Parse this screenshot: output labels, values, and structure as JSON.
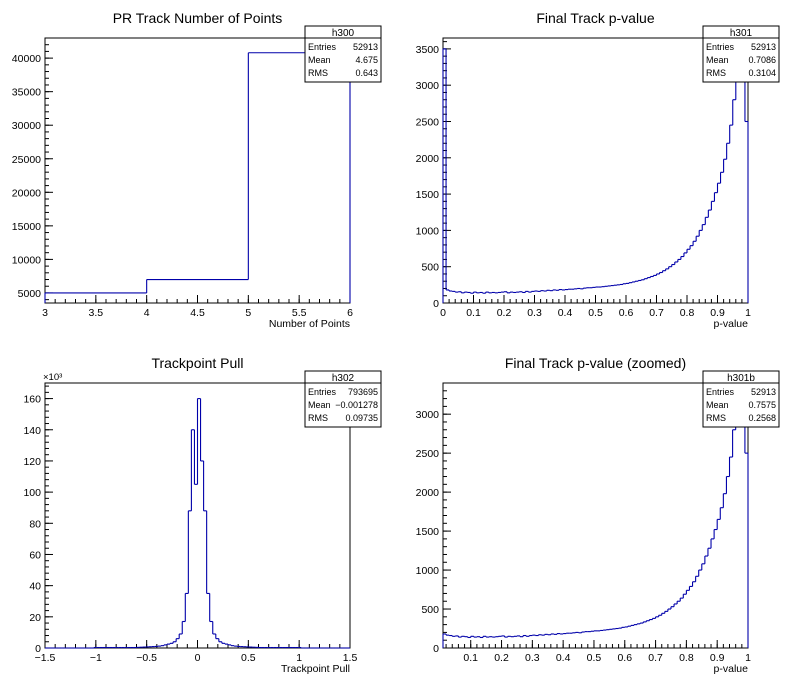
{
  "chart_data": [
    {
      "id": "h300",
      "type": "histogram",
      "title": "PR Track Number of Points",
      "xlabel": "Number of Points",
      "ylabel": "",
      "xlim": [
        3,
        6
      ],
      "ylim": [
        3500,
        43000
      ],
      "xticks": [
        3,
        3.5,
        4,
        4.5,
        5,
        5.5,
        6
      ],
      "xtick_labels": [
        "3",
        "3.5",
        "4",
        "4.5",
        "5",
        "5.5",
        "6"
      ],
      "yticks": [
        5000,
        10000,
        15000,
        20000,
        25000,
        30000,
        35000,
        40000
      ],
      "ytick_labels": [
        "5000",
        "10000",
        "15000",
        "20000",
        "25000",
        "30000",
        "35000",
        "40000"
      ],
      "y_multiplier": "",
      "line_color": "#0000aa",
      "stats": {
        "name": "h300",
        "entries": "52913",
        "mean": "4.675",
        "rms": "0.643"
      },
      "bins": {
        "edges": [
          3,
          4,
          5,
          6
        ],
        "values": [
          5000,
          7000,
          40800
        ]
      }
    },
    {
      "id": "h301",
      "type": "histogram",
      "title": "Final Track p-value",
      "xlabel": "p-value",
      "ylabel": "",
      "xlim": [
        0,
        1
      ],
      "ylim": [
        0,
        3650
      ],
      "xticks": [
        0,
        0.1,
        0.2,
        0.3,
        0.4,
        0.5,
        0.6,
        0.7,
        0.8,
        0.9,
        1
      ],
      "xtick_labels": [
        "0",
        "0.1",
        "0.2",
        "0.3",
        "0.4",
        "0.5",
        "0.6",
        "0.7",
        "0.8",
        "0.9",
        "1"
      ],
      "yticks": [
        0,
        500,
        1000,
        1500,
        2000,
        2500,
        3000,
        3500
      ],
      "ytick_labels": [
        "0",
        "500",
        "1000",
        "1500",
        "2000",
        "2500",
        "3000",
        "3500"
      ],
      "y_multiplier": "",
      "line_color": "#0000aa",
      "stats": {
        "name": "h301",
        "entries": "52913",
        "mean": "0.7086",
        "rms": "0.3104"
      },
      "bins": {
        "edges": [
          0,
          0.01,
          0.02,
          0.03,
          0.04,
          0.05,
          0.06,
          0.07,
          0.08,
          0.09,
          0.1,
          0.11,
          0.12,
          0.13,
          0.14,
          0.15,
          0.16,
          0.17,
          0.18,
          0.19,
          0.2,
          0.21,
          0.22,
          0.23,
          0.24,
          0.25,
          0.26,
          0.27,
          0.28,
          0.29,
          0.3,
          0.31,
          0.32,
          0.33,
          0.34,
          0.35,
          0.36,
          0.37,
          0.38,
          0.39,
          0.4,
          0.41,
          0.42,
          0.43,
          0.44,
          0.45,
          0.46,
          0.47,
          0.48,
          0.49,
          0.5,
          0.51,
          0.52,
          0.53,
          0.54,
          0.55,
          0.56,
          0.57,
          0.58,
          0.59,
          0.6,
          0.61,
          0.62,
          0.63,
          0.64,
          0.65,
          0.66,
          0.67,
          0.68,
          0.69,
          0.7,
          0.71,
          0.72,
          0.73,
          0.74,
          0.75,
          0.76,
          0.77,
          0.78,
          0.79,
          0.8,
          0.81,
          0.82,
          0.83,
          0.84,
          0.85,
          0.86,
          0.87,
          0.88,
          0.89,
          0.9,
          0.91,
          0.92,
          0.93,
          0.94,
          0.95,
          0.96,
          0.97,
          0.98,
          0.99,
          1
        ],
        "values": [
          3500,
          180,
          165,
          160,
          150,
          155,
          140,
          150,
          145,
          135,
          150,
          140,
          145,
          135,
          150,
          140,
          145,
          140,
          145,
          150,
          155,
          140,
          150,
          145,
          150,
          155,
          145,
          160,
          150,
          160,
          165,
          160,
          170,
          165,
          175,
          170,
          180,
          175,
          185,
          180,
          185,
          190,
          190,
          195,
          200,
          195,
          205,
          210,
          210,
          215,
          220,
          220,
          225,
          230,
          235,
          240,
          245,
          250,
          255,
          265,
          270,
          280,
          290,
          300,
          310,
          320,
          335,
          350,
          365,
          380,
          400,
          420,
          445,
          470,
          500,
          530,
          565,
          600,
          640,
          690,
          740,
          790,
          850,
          920,
          1000,
          1080,
          1180,
          1280,
          1400,
          1520,
          1650,
          1800,
          1980,
          2200,
          2450,
          2800,
          3300,
          3700,
          3700,
          2500
        ]
      }
    },
    {
      "id": "h302",
      "type": "histogram",
      "title": "Trackpoint Pull",
      "xlabel": "Trackpoint Pull",
      "ylabel": "",
      "xlim": [
        -1.5,
        1.5
      ],
      "ylim": [
        0,
        170
      ],
      "xticks": [
        -1.5,
        -1,
        -0.5,
        0,
        0.5,
        1,
        1.5
      ],
      "xtick_labels": [
        "−1.5",
        "−1",
        "−0.5",
        "0",
        "0.5",
        "1",
        "1.5"
      ],
      "yticks": [
        0,
        20,
        40,
        60,
        80,
        100,
        120,
        140,
        160
      ],
      "ytick_labels": [
        "0",
        "20",
        "40",
        "60",
        "80",
        "100",
        "120",
        "140",
        "160"
      ],
      "y_multiplier": "×10³",
      "line_color": "#0000aa",
      "stats": {
        "name": "h302",
        "entries": "793695",
        "mean": "−0.001278",
        "rms": "0.09735"
      },
      "bins": {
        "edges": [
          -1.5,
          -1.47,
          -1.44,
          -1.41,
          -1.38,
          -1.35,
          -1.32,
          -1.29,
          -1.26,
          -1.23,
          -1.2,
          -1.17,
          -1.14,
          -1.11,
          -1.08,
          -1.05,
          -1.02,
          -0.99,
          -0.96,
          -0.93,
          -0.9,
          -0.87,
          -0.84,
          -0.81,
          -0.78,
          -0.75,
          -0.72,
          -0.69,
          -0.66,
          -0.63,
          -0.6,
          -0.57,
          -0.54,
          -0.51,
          -0.48,
          -0.45,
          -0.42,
          -0.39,
          -0.36,
          -0.33,
          -0.3,
          -0.27,
          -0.24,
          -0.21,
          -0.18,
          -0.15,
          -0.12,
          -0.09,
          -0.06,
          -0.03,
          0,
          0.03,
          0.06,
          0.09,
          0.12,
          0.15,
          0.18,
          0.21,
          0.24,
          0.27,
          0.3,
          0.33,
          0.36,
          0.39,
          0.42,
          0.45,
          0.48,
          0.51,
          0.54,
          0.57,
          0.6,
          0.63,
          0.66,
          0.69,
          0.72,
          0.75,
          0.78,
          0.81,
          0.84,
          0.87,
          0.9,
          0.93,
          0.96,
          0.99,
          1.02,
          1.05,
          1.08,
          1.11,
          1.14,
          1.17,
          1.2,
          1.23,
          1.26,
          1.29,
          1.32,
          1.35,
          1.38,
          1.41,
          1.44,
          1.47,
          1.5
        ],
        "values": [
          0,
          0,
          0,
          0,
          0,
          0,
          0,
          0,
          0,
          0,
          0,
          0,
          0,
          0,
          0,
          0,
          0.3,
          0.3,
          0.3,
          0.3,
          0.3,
          0.3,
          0.3,
          0.3,
          0.3,
          0.3,
          0.3,
          0.3,
          0.3,
          0.3,
          0.4,
          0.5,
          0.6,
          0.7,
          0.8,
          0.9,
          1.0,
          1.2,
          1.5,
          2,
          2.5,
          3,
          4,
          6,
          9,
          17,
          35,
          88,
          140,
          105,
          160,
          120,
          88,
          35,
          17,
          9,
          6,
          4,
          3,
          2.5,
          2,
          1.5,
          1.2,
          1.0,
          0.9,
          0.8,
          0.7,
          0.6,
          0.5,
          0.4,
          0.3,
          0.3,
          0.3,
          0.3,
          0.3,
          0.3,
          0.3,
          0.3,
          0.3,
          0.3,
          0.3,
          0.3,
          0.3,
          0.3,
          0,
          0,
          0,
          0,
          0,
          0,
          0,
          0,
          0,
          0,
          0,
          0,
          0,
          0,
          0,
          0
        ]
      }
    },
    {
      "id": "h301b",
      "type": "histogram",
      "title": "Final Track p-value (zoomed)",
      "xlabel": "p-value",
      "ylabel": "",
      "xlim": [
        0.01,
        1
      ],
      "ylim": [
        0,
        3400
      ],
      "xticks": [
        0.1,
        0.2,
        0.3,
        0.4,
        0.5,
        0.6,
        0.7,
        0.8,
        0.9,
        1
      ],
      "xtick_labels": [
        "0.1",
        "0.2",
        "0.3",
        "0.4",
        "0.5",
        "0.6",
        "0.7",
        "0.8",
        "0.9",
        "1"
      ],
      "yticks": [
        0,
        500,
        1000,
        1500,
        2000,
        2500,
        3000
      ],
      "ytick_labels": [
        "0",
        "500",
        "1000",
        "1500",
        "2000",
        "2500",
        "3000"
      ],
      "y_multiplier": "",
      "line_color": "#0000aa",
      "stats": {
        "name": "h301b",
        "entries": "52913",
        "mean": "0.7575",
        "rms": "0.2568"
      },
      "bins": {
        "edges": [
          0.01,
          0.02,
          0.03,
          0.04,
          0.05,
          0.06,
          0.07,
          0.08,
          0.09,
          0.1,
          0.11,
          0.12,
          0.13,
          0.14,
          0.15,
          0.16,
          0.17,
          0.18,
          0.19,
          0.2,
          0.21,
          0.22,
          0.23,
          0.24,
          0.25,
          0.26,
          0.27,
          0.28,
          0.29,
          0.3,
          0.31,
          0.32,
          0.33,
          0.34,
          0.35,
          0.36,
          0.37,
          0.38,
          0.39,
          0.4,
          0.41,
          0.42,
          0.43,
          0.44,
          0.45,
          0.46,
          0.47,
          0.48,
          0.49,
          0.5,
          0.51,
          0.52,
          0.53,
          0.54,
          0.55,
          0.56,
          0.57,
          0.58,
          0.59,
          0.6,
          0.61,
          0.62,
          0.63,
          0.64,
          0.65,
          0.66,
          0.67,
          0.68,
          0.69,
          0.7,
          0.71,
          0.72,
          0.73,
          0.74,
          0.75,
          0.76,
          0.77,
          0.78,
          0.79,
          0.8,
          0.81,
          0.82,
          0.83,
          0.84,
          0.85,
          0.86,
          0.87,
          0.88,
          0.89,
          0.9,
          0.91,
          0.92,
          0.93,
          0.94,
          0.95,
          0.96,
          0.97,
          0.98,
          0.99,
          1
        ],
        "values": [
          180,
          165,
          160,
          150,
          155,
          140,
          150,
          145,
          135,
          150,
          140,
          145,
          135,
          150,
          140,
          145,
          140,
          145,
          150,
          155,
          140,
          150,
          145,
          150,
          155,
          145,
          160,
          150,
          160,
          165,
          160,
          170,
          165,
          175,
          170,
          180,
          175,
          185,
          180,
          185,
          190,
          190,
          195,
          200,
          195,
          205,
          210,
          210,
          215,
          220,
          220,
          225,
          230,
          235,
          240,
          245,
          250,
          255,
          265,
          270,
          280,
          290,
          300,
          310,
          320,
          335,
          350,
          365,
          380,
          400,
          420,
          445,
          470,
          500,
          530,
          565,
          600,
          640,
          690,
          740,
          790,
          850,
          920,
          1000,
          1080,
          1180,
          1280,
          1400,
          1520,
          1650,
          1800,
          1980,
          2200,
          2450,
          2800,
          3300,
          3700,
          3700,
          2500
        ]
      }
    }
  ]
}
